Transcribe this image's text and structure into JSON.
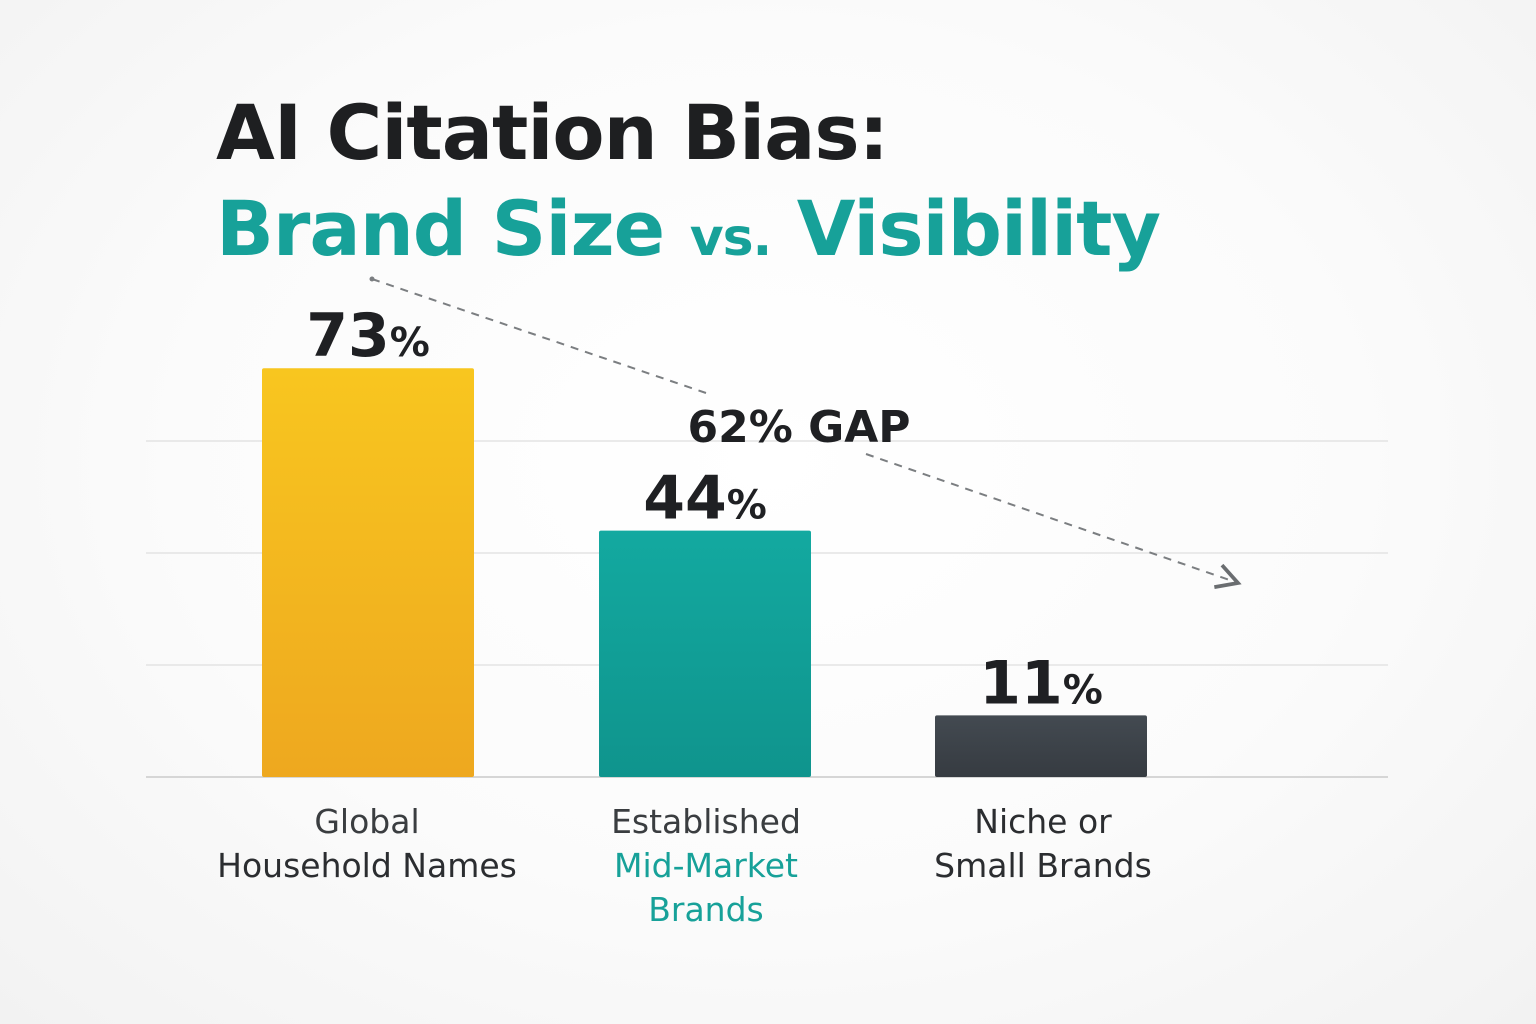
{
  "title": {
    "line1": "AI Citation Bias:",
    "line2_a": "Brand Size",
    "line2_b": "vs.",
    "line2_c": "Visibility"
  },
  "chart_data": {
    "type": "bar",
    "title": "AI Citation Bias: Brand Size vs. Visibility",
    "categories": [
      [
        "Global",
        "Household Names"
      ],
      [
        "Established",
        "Mid-Market",
        "Brands"
      ],
      [
        "Niche or",
        "Small Brands"
      ]
    ],
    "values": [
      73,
      44,
      11
    ],
    "value_labels": [
      "73%",
      "44%",
      "11%"
    ],
    "colors": [
      "#f3b61c",
      "#13a39b",
      "#3d4349"
    ],
    "ylim": [
      0,
      100
    ],
    "grid": true,
    "annotation": {
      "text": "62% GAP",
      "type": "dashed-arrow",
      "from_category": 0,
      "to_category": 2
    }
  }
}
